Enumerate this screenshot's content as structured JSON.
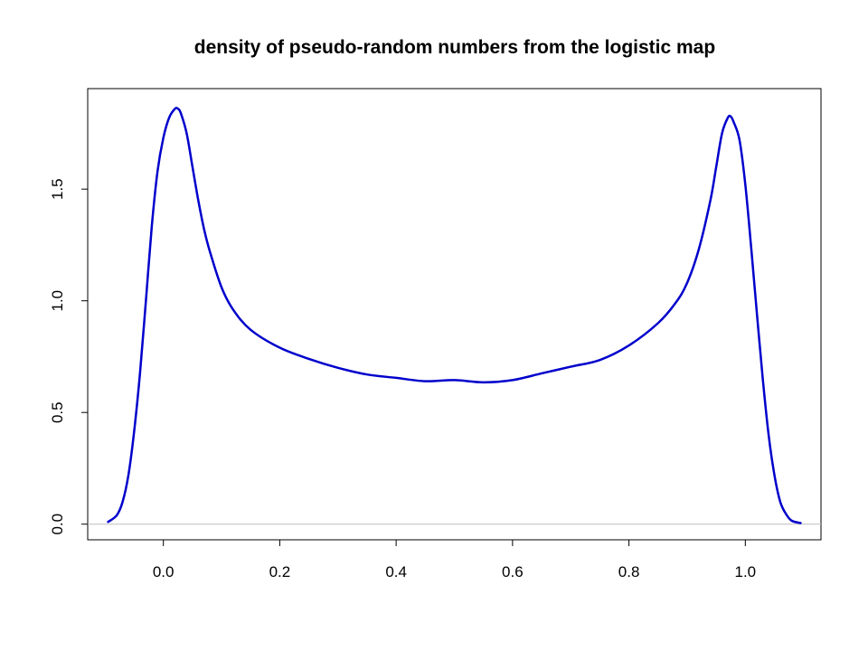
{
  "chart_data": {
    "type": "line",
    "title": "density of pseudo-random numbers from the logistic map",
    "xlabel": "",
    "ylabel": "",
    "xlim": [
      -0.13,
      1.13
    ],
    "ylim": [
      -0.07,
      1.95
    ],
    "x_ticks": [
      0.0,
      0.2,
      0.4,
      0.6,
      0.8,
      1.0
    ],
    "x_tick_labels": [
      "0.0",
      "0.2",
      "0.4",
      "0.6",
      "0.8",
      "1.0"
    ],
    "y_ticks": [
      0.0,
      0.5,
      1.0,
      1.5
    ],
    "y_tick_labels": [
      "0.0",
      "0.5",
      "1.0",
      "1.5"
    ],
    "grid": false,
    "baseline": 0,
    "colors": {
      "line": "#0000cc",
      "baseline": "#bebebe",
      "axes": "#000000"
    },
    "series": [
      {
        "x": [
          -0.095,
          -0.08,
          -0.07,
          -0.06,
          -0.05,
          -0.04,
          -0.03,
          -0.02,
          -0.01,
          0.0,
          0.01,
          0.02,
          0.025,
          0.03,
          0.04,
          0.05,
          0.06,
          0.07,
          0.08,
          0.1,
          0.12,
          0.15,
          0.2,
          0.25,
          0.3,
          0.35,
          0.4,
          0.45,
          0.5,
          0.55,
          0.6,
          0.65,
          0.7,
          0.75,
          0.8,
          0.85,
          0.88,
          0.9,
          0.92,
          0.94,
          0.95,
          0.96,
          0.97,
          0.975,
          0.98,
          0.99,
          1.0,
          1.01,
          1.02,
          1.03,
          1.04,
          1.05,
          1.06,
          1.07,
          1.08,
          1.095
        ],
        "y": [
          0.01,
          0.04,
          0.1,
          0.22,
          0.42,
          0.68,
          1.0,
          1.33,
          1.58,
          1.73,
          1.82,
          1.86,
          1.86,
          1.84,
          1.75,
          1.6,
          1.45,
          1.32,
          1.22,
          1.06,
          0.96,
          0.87,
          0.79,
          0.74,
          0.7,
          0.67,
          0.655,
          0.64,
          0.645,
          0.635,
          0.645,
          0.675,
          0.705,
          0.735,
          0.8,
          0.9,
          0.99,
          1.08,
          1.23,
          1.45,
          1.6,
          1.75,
          1.82,
          1.825,
          1.8,
          1.72,
          1.52,
          1.24,
          0.94,
          0.65,
          0.4,
          0.22,
          0.1,
          0.045,
          0.015,
          0.005
        ]
      }
    ]
  }
}
